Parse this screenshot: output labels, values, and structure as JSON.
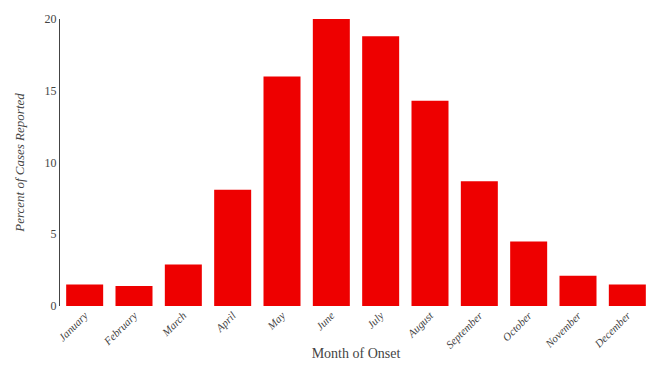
{
  "chart_data": {
    "type": "bar",
    "categories": [
      "January",
      "February",
      "March",
      "April",
      "May",
      "June",
      "July",
      "August",
      "September",
      "October",
      "November",
      "December"
    ],
    "values": [
      1.5,
      1.4,
      2.9,
      8.1,
      16.0,
      20.0,
      18.8,
      14.3,
      8.7,
      4.5,
      2.1,
      1.5
    ],
    "color": "#ee0000",
    "xlabel": "Month of Onset",
    "ylabel": "Percent of Cases Reported",
    "ylim": [
      0,
      20
    ],
    "yticks": [
      0,
      5,
      10,
      15,
      20
    ],
    "grid": false
  }
}
